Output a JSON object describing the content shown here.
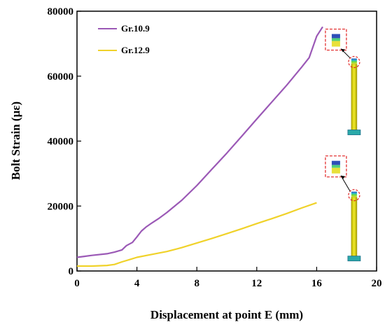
{
  "chart_data": {
    "type": "line",
    "xlabel": "Displacement at point E (mm)",
    "ylabel": "Bolt Strain (με)",
    "xlim": [
      0,
      20
    ],
    "ylim": [
      0,
      80000
    ],
    "x_ticks": [
      "0",
      "4",
      "8",
      "12",
      "16",
      "20"
    ],
    "y_ticks": [
      "0",
      "20000",
      "40000",
      "60000",
      "80000"
    ],
    "grid": false,
    "legend_position": "top-left",
    "series": [
      {
        "name": "Gr.10.9",
        "color": "#9b59b6",
        "points": [
          [
            0,
            4200
          ],
          [
            0.5,
            4500
          ],
          [
            1,
            4800
          ],
          [
            2,
            5300
          ],
          [
            2.5,
            5800
          ],
          [
            3,
            6500
          ],
          [
            3.3,
            7800
          ],
          [
            3.7,
            8800
          ],
          [
            4,
            10500
          ],
          [
            4.3,
            12300
          ],
          [
            4.6,
            13500
          ],
          [
            5,
            14800
          ],
          [
            5.5,
            16300
          ],
          [
            6,
            18000
          ],
          [
            7,
            21800
          ],
          [
            8,
            26300
          ],
          [
            9,
            31300
          ],
          [
            10,
            36300
          ],
          [
            11,
            41500
          ],
          [
            12,
            46800
          ],
          [
            13,
            52000
          ],
          [
            14,
            57200
          ],
          [
            15,
            62800
          ],
          [
            15.5,
            65700
          ],
          [
            16,
            72300
          ],
          [
            16.4,
            75200
          ]
        ]
      },
      {
        "name": "Gr.12.9",
        "color": "#f0d22a",
        "points": [
          [
            0,
            1500
          ],
          [
            1,
            1500
          ],
          [
            2,
            1700
          ],
          [
            2.5,
            2000
          ],
          [
            3,
            2800
          ],
          [
            3.5,
            3500
          ],
          [
            4,
            4200
          ],
          [
            5,
            5100
          ],
          [
            6,
            6000
          ],
          [
            7,
            7200
          ],
          [
            8,
            8600
          ],
          [
            9,
            10000
          ],
          [
            10,
            11500
          ],
          [
            11,
            13000
          ],
          [
            12,
            14600
          ],
          [
            13,
            16100
          ],
          [
            14,
            17700
          ],
          [
            15,
            19400
          ],
          [
            16,
            21000
          ]
        ]
      }
    ],
    "insets": [
      {
        "name": "bolt-inset-gr10-9",
        "at_x": 18.5,
        "y_top": 65000
      },
      {
        "name": "bolt-inset-gr12-9",
        "at_x": 18.5,
        "y_top": 24000
      }
    ]
  }
}
